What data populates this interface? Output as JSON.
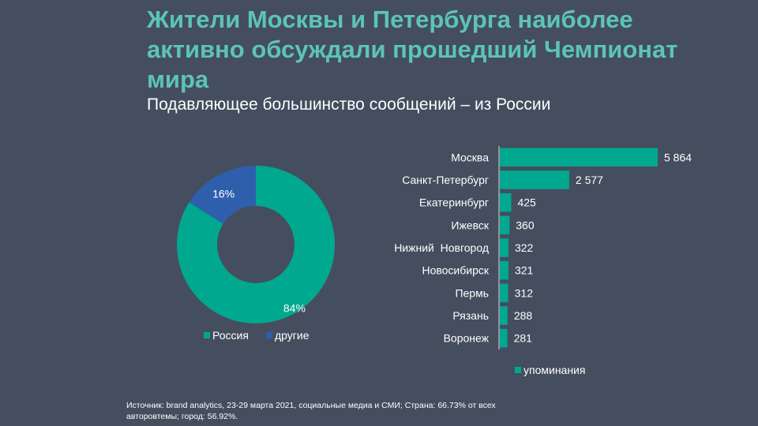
{
  "header": {
    "title": "Жители Москвы и Петербурга наиболее активно обсуждали прошедший Чемпионат мира",
    "subtitle": "Подавляющее большинство сообщений – из России"
  },
  "footer": {
    "source": "Источник: brand analytics, 23-29 марта 2021, социальные медиа и СМИ; Страна: 66.73% от всех авторовтемы; город: 56.92%."
  },
  "colors": {
    "background": "#444e5e",
    "title": "#5cc4b8",
    "teal": "#00a88f",
    "blue": "#2e5fad",
    "text": "#ffffff"
  },
  "chart_data": [
    {
      "type": "pie",
      "variant": "donut",
      "title": "",
      "categories": [
        "Россия",
        "другие"
      ],
      "values": [
        84,
        16
      ],
      "labels": [
        "84%",
        "16%"
      ],
      "colors": [
        "#00a88f",
        "#2e5fad"
      ],
      "legend": {
        "placement": "bottom",
        "entries": [
          "Россия",
          "другие"
        ]
      }
    },
    {
      "type": "bar",
      "orientation": "horizontal",
      "title": "",
      "categories": [
        "Москва",
        "Санкт-Петербург",
        "Екатеринбург",
        "Ижевск",
        "Нижний  Новгород",
        "Новосибирск",
        "Пермь",
        "Рязань",
        "Воронеж"
      ],
      "values": [
        5864,
        2577,
        425,
        360,
        322,
        321,
        312,
        288,
        281
      ],
      "data_labels": [
        "5 864",
        "2 577",
        "425",
        "360",
        "322",
        "321",
        "312",
        "288",
        "281"
      ],
      "series": [
        {
          "name": "упоминания",
          "values": [
            5864,
            2577,
            425,
            360,
            322,
            321,
            312,
            288,
            281
          ]
        }
      ],
      "xlim": [
        0,
        5864
      ],
      "grid": false,
      "legend": {
        "placement": "bottom",
        "entries": [
          "упоминания"
        ]
      },
      "color": "#00a88f"
    }
  ]
}
